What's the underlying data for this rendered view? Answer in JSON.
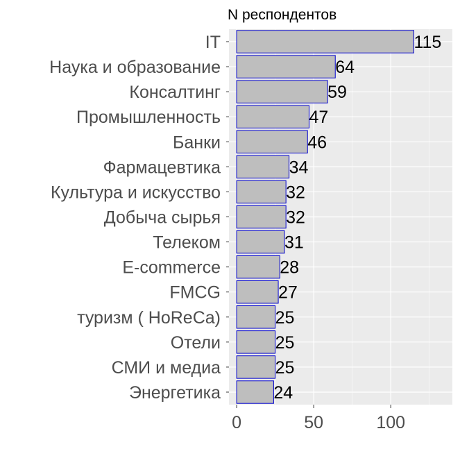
{
  "chart_data": {
    "type": "bar",
    "orientation": "horizontal",
    "title": "N респондентов",
    "xlabel": "",
    "ylabel": "",
    "categories": [
      "IT",
      "Наука и образование",
      "Консалтинг",
      "Промышленность",
      "Банки",
      "Фармацевтика",
      "Культура и искусство",
      "Добыча сырья",
      "Телеком",
      "E-commerce",
      "FMCG",
      "туризм ( HoReCa)",
      "Отели",
      "СМИ и медиа",
      "Энергетика"
    ],
    "values": [
      115,
      64,
      59,
      47,
      46,
      34,
      32,
      32,
      31,
      28,
      27,
      25,
      25,
      25,
      24
    ],
    "xlim": [
      -5,
      140
    ],
    "x_ticks": [
      0,
      50,
      100
    ],
    "x_tick_labels": [
      "0",
      "50",
      "100"
    ],
    "grid": true,
    "colors": {
      "panel_background": "#ebebeb",
      "grid_major": "#ffffff",
      "grid_minor": "#f5f5f5",
      "bar_fill": "#bebebe",
      "bar_outline": "#0000cd",
      "tick_color": "#333333"
    }
  }
}
